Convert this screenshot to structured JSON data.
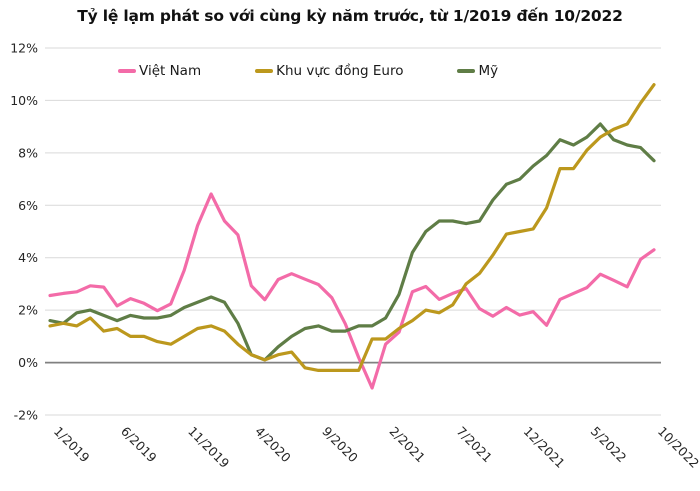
{
  "chart_data": {
    "type": "line",
    "title": "Tỷ lệ lạm phát so với cùng kỳ năm trước, từ 1/2019 đến 10/2022",
    "x_count": 46,
    "x_tick_indices": [
      0,
      5,
      10,
      15,
      20,
      25,
      30,
      35,
      40,
      45
    ],
    "x_tick_labels": [
      "1/2019",
      "6/2019",
      "11/2019",
      "4/2020",
      "9/2020",
      "2/2021",
      "7/2021",
      "12/2021",
      "5/2022",
      "10/2022"
    ],
    "y_ticks": {
      "values": [
        -2,
        0,
        2,
        4,
        6,
        8,
        10,
        12
      ],
      "labels": [
        "-2%",
        "0%",
        "2%",
        "4%",
        "6%",
        "8%",
        "10%",
        "12%"
      ]
    },
    "ylim": [
      -2,
      12
    ],
    "grid": "horizontal",
    "legend_position": "top",
    "series": [
      {
        "name": "Việt Nam",
        "color": "#F36BA8",
        "values": [
          2.56,
          2.64,
          2.7,
          2.93,
          2.88,
          2.16,
          2.44,
          2.26,
          1.98,
          2.24,
          3.52,
          5.23,
          6.43,
          5.4,
          4.87,
          2.93,
          2.4,
          3.17,
          3.39,
          3.18,
          2.98,
          2.47,
          1.48,
          0.19,
          -0.97,
          0.7,
          1.16,
          2.7,
          2.9,
          2.41,
          2.64,
          2.82,
          2.06,
          1.77,
          2.1,
          1.81,
          1.94,
          1.42,
          2.41,
          2.64,
          2.86,
          3.37,
          3.14,
          2.89,
          3.94,
          4.3
        ]
      },
      {
        "name": "Khu vực đồng Euro",
        "color": "#BC981D",
        "values": [
          1.4,
          1.5,
          1.4,
          1.7,
          1.2,
          1.3,
          1.0,
          1.0,
          0.8,
          0.7,
          1.0,
          1.3,
          1.4,
          1.2,
          0.7,
          0.3,
          0.1,
          0.3,
          0.4,
          -0.2,
          -0.3,
          -0.3,
          -0.3,
          -0.3,
          0.9,
          0.9,
          1.3,
          1.6,
          2.0,
          1.9,
          2.2,
          3.0,
          3.4,
          4.1,
          4.9,
          5.0,
          5.1,
          5.9,
          7.4,
          7.4,
          8.1,
          8.6,
          8.9,
          9.1,
          9.9,
          10.6
        ]
      },
      {
        "name": "Mỹ",
        "color": "#5F7D46",
        "values": [
          1.6,
          1.5,
          1.9,
          2.0,
          1.8,
          1.6,
          1.8,
          1.7,
          1.7,
          1.8,
          2.1,
          2.3,
          2.5,
          2.3,
          1.5,
          0.3,
          0.1,
          0.6,
          1.0,
          1.3,
          1.4,
          1.2,
          1.2,
          1.4,
          1.4,
          1.7,
          2.6,
          4.2,
          5.0,
          5.4,
          5.4,
          5.3,
          5.4,
          6.2,
          6.8,
          7.0,
          7.5,
          7.9,
          8.5,
          8.3,
          8.6,
          9.1,
          8.5,
          8.3,
          8.2,
          7.7
        ]
      }
    ]
  },
  "colors": {
    "background": "#FFFFFF",
    "grid_line": "#D9D9D9",
    "zero_line": "#808080",
    "axis_text": "#262626",
    "title_text": "#111111"
  }
}
